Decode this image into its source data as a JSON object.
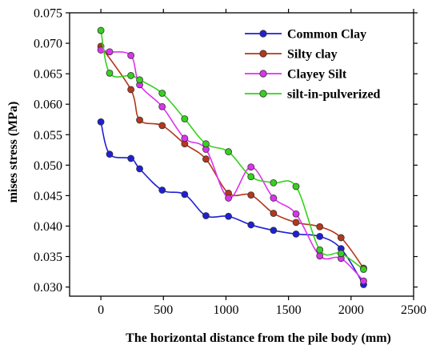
{
  "chart_data": {
    "type": "line",
    "xlabel": "The horizontal distance from the pile body (mm)",
    "ylabel": "mises stress (MPa)",
    "xlim": [
      -250,
      2500
    ],
    "ylim": [
      0.0285,
      0.075
    ],
    "xticks": [
      0,
      500,
      1000,
      1500,
      2000,
      2500
    ],
    "xtick_labels": [
      "0",
      "500",
      "1000",
      "1500",
      "2000",
      "2500"
    ],
    "yticks": [
      0.03,
      0.035,
      0.04,
      0.045,
      0.05,
      0.055,
      0.06,
      0.065,
      0.07,
      0.075
    ],
    "ytick_labels": [
      "0.030",
      "0.035",
      "0.040",
      "0.045",
      "0.050",
      "0.055",
      "0.060",
      "0.065",
      "0.070",
      "0.075"
    ],
    "grid": false,
    "legend_position": "top-right",
    "series": [
      {
        "name": "Common Clay",
        "color": "#1f1fd6",
        "x": [
          0,
          70,
          240,
          310,
          490,
          670,
          840,
          1020,
          1200,
          1380,
          1560,
          1750,
          1920,
          2100
        ],
        "y": [
          0.0571,
          0.0518,
          0.0511,
          0.0494,
          0.0459,
          0.0452,
          0.0417,
          0.0416,
          0.0402,
          0.0393,
          0.0387,
          0.0383,
          0.0363,
          0.0304
        ]
      },
      {
        "name": "Silty clay",
        "color": "#b5371c",
        "x": [
          0,
          240,
          310,
          490,
          670,
          840,
          1020,
          1200,
          1380,
          1560,
          1750,
          1920,
          2100
        ],
        "y": [
          0.0695,
          0.0624,
          0.0574,
          0.0565,
          0.0535,
          0.051,
          0.0454,
          0.0451,
          0.0421,
          0.0406,
          0.0399,
          0.0381,
          0.0331
        ]
      },
      {
        "name": "Clayey Silt",
        "color": "#dd33ee",
        "x": [
          0,
          70,
          240,
          310,
          490,
          670,
          840,
          1020,
          1200,
          1380,
          1560,
          1750,
          1920,
          2100
        ],
        "y": [
          0.0689,
          0.0686,
          0.068,
          0.0632,
          0.0596,
          0.0544,
          0.0526,
          0.0446,
          0.0497,
          0.0446,
          0.042,
          0.0351,
          0.0347,
          0.031
        ]
      },
      {
        "name": "silt-in-pulverized",
        "color": "#36d11e",
        "x": [
          0,
          70,
          240,
          310,
          490,
          670,
          840,
          1020,
          1200,
          1380,
          1560,
          1750,
          1920,
          2100
        ],
        "y": [
          0.0721,
          0.0651,
          0.0647,
          0.064,
          0.0618,
          0.0576,
          0.0535,
          0.0522,
          0.0481,
          0.0471,
          0.0465,
          0.0361,
          0.0355,
          0.0329
        ]
      }
    ]
  }
}
